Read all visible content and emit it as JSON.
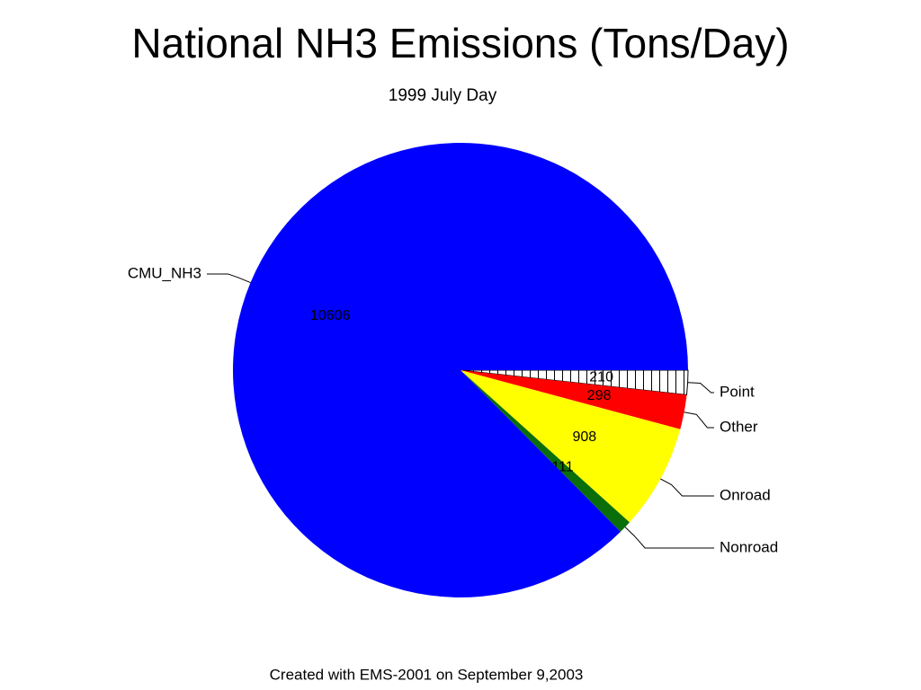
{
  "chart_data": {
    "type": "pie",
    "title": "National NH3 Emissions (Tons/Day)",
    "subtitle": "1999 July Day",
    "footer": "Created with EMS-2001 on September  9,2003",
    "categories": [
      "Point",
      "Other",
      "Onroad",
      "Nonroad",
      "CMU_NH3"
    ],
    "values": [
      210,
      298,
      908,
      111,
      10606
    ],
    "colors": [
      "#ffffff",
      "#ff0000",
      "#ffff00",
      "#0a6e0a",
      "#0000ff"
    ],
    "patterns": [
      "vertical-hatch",
      null,
      null,
      null,
      null
    ]
  }
}
